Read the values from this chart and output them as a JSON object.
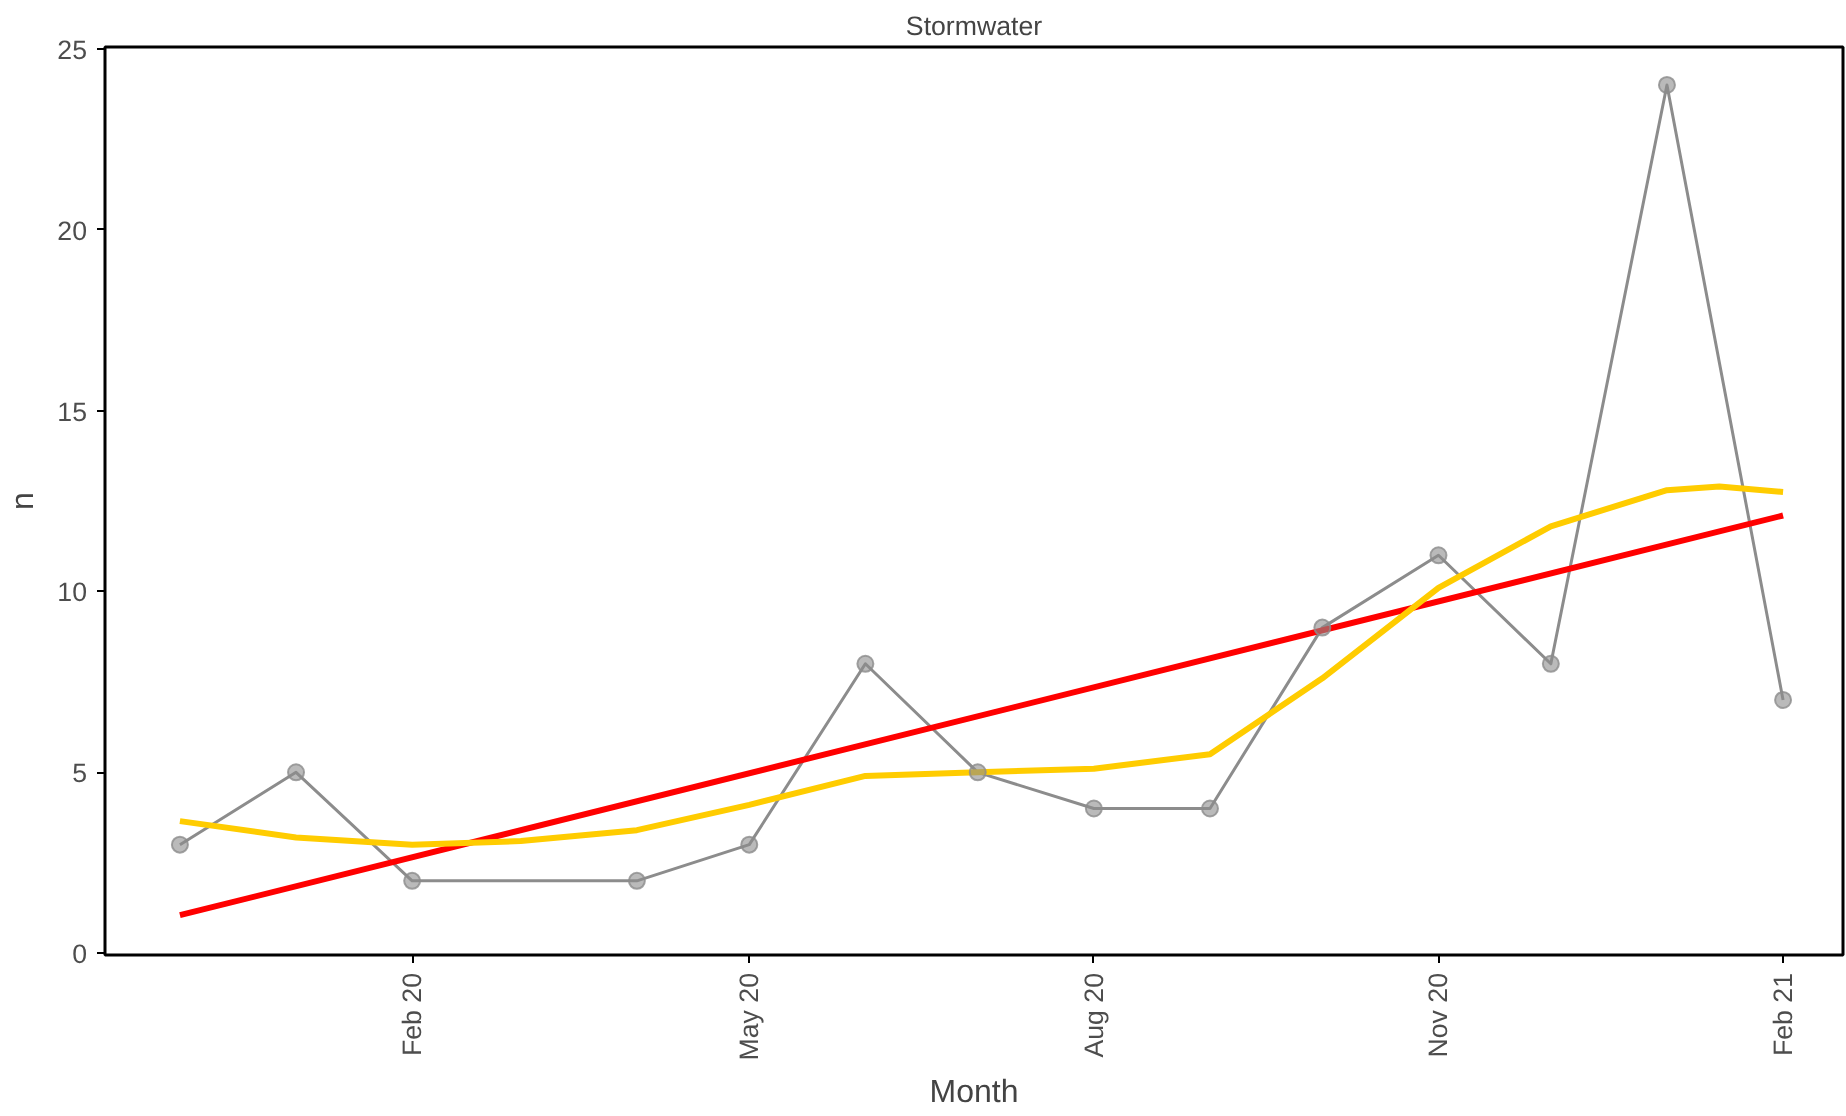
{
  "chart_data": {
    "type": "line",
    "title": "Stormwater",
    "xlabel": "Month",
    "ylabel": "n",
    "xlim": [
      "2019-11-11",
      "2021-02-17"
    ],
    "ylim": [
      -0.05,
      25.05
    ],
    "xticks": [
      {
        "value": "2020-02-01",
        "label": "Feb 20"
      },
      {
        "value": "2020-05-01",
        "label": "May 20"
      },
      {
        "value": "2020-08-01",
        "label": "Aug 20"
      },
      {
        "value": "2020-11-01",
        "label": "Nov 20"
      },
      {
        "value": "2021-02-01",
        "label": "Feb 21"
      }
    ],
    "yticks": [
      0,
      5,
      10,
      15,
      20,
      25
    ],
    "grid": false,
    "series": [
      {
        "marker": "circle",
        "color": "#8c8c8c",
        "x": [
          "2019-12-01",
          "2020-01-01",
          "2020-02-01",
          "2020-04-01",
          "2020-05-01",
          "2020-06-01",
          "2020-07-01",
          "2020-08-01",
          "2020-09-01",
          "2020-10-01",
          "2020-11-01",
          "2020-12-01",
          "2021-01-01",
          "2021-02-01"
        ],
        "values": [
          3,
          5,
          2,
          2,
          3,
          8,
          5,
          4,
          4,
          9,
          11,
          8,
          24,
          7
        ]
      },
      {
        "marker": "none",
        "color": "#ff0000",
        "x": [
          "2019-12-01",
          "2021-02-01"
        ],
        "values": [
          1.05,
          12.1
        ]
      },
      {
        "marker": "none",
        "color": "#ffcc00",
        "x": [
          "2019-12-01",
          "2020-01-01",
          "2020-02-01",
          "2020-03-01",
          "2020-04-01",
          "2020-05-01",
          "2020-06-01",
          "2020-07-01",
          "2020-08-01",
          "2020-09-01",
          "2020-10-01",
          "2020-11-01",
          "2020-12-01",
          "2021-01-01",
          "2021-01-15",
          "2021-02-01"
        ],
        "values": [
          3.65,
          3.2,
          3.0,
          3.1,
          3.4,
          4.1,
          4.9,
          5.0,
          5.1,
          5.5,
          7.6,
          10.1,
          11.8,
          12.8,
          12.9,
          12.75
        ]
      }
    ]
  }
}
